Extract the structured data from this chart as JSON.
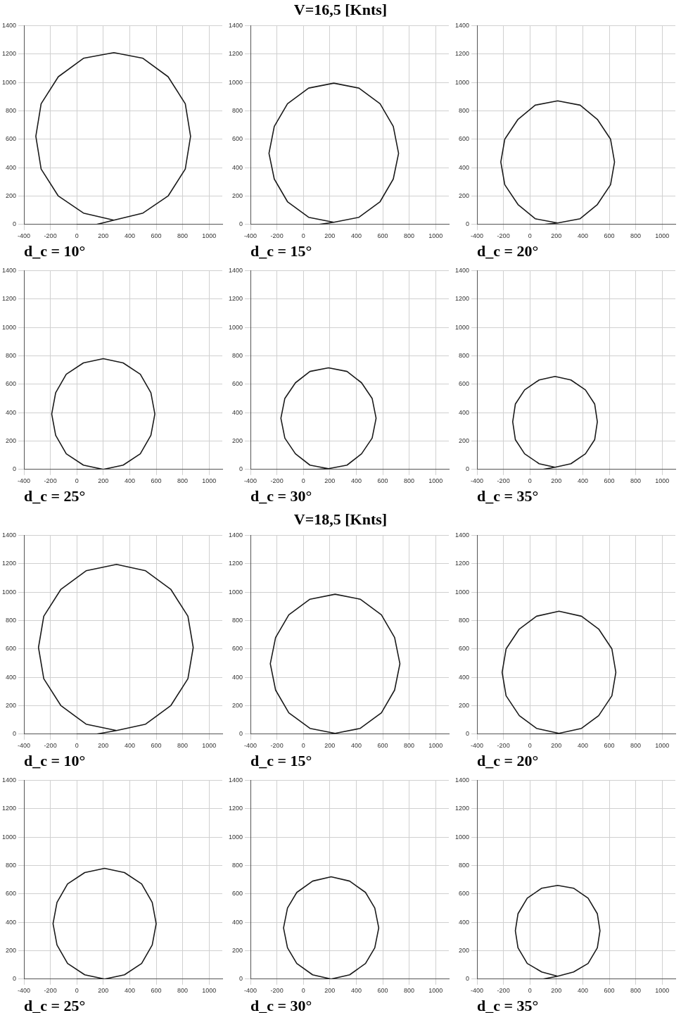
{
  "chart_data": [
    {
      "type": "line",
      "xlabel": "d_c = 10°",
      "color": "#1a1a1a",
      "x": [
        0,
        150,
        280,
        500,
        690,
        820,
        860,
        820,
        690,
        500,
        280,
        50,
        -140,
        -270,
        -310,
        -270,
        -140,
        50,
        280
      ],
      "values": [
        0,
        0,
        30,
        80,
        200,
        390,
        620,
        850,
        1040,
        1170,
        1210,
        1170,
        1040,
        850,
        620,
        390,
        200,
        80,
        30
      ],
      "xlim": [
        -400,
        1100
      ],
      "xticks": [
        -400,
        -200,
        0,
        200,
        400,
        600,
        800,
        1000
      ],
      "ylim": [
        0,
        1400
      ],
      "yticks": [
        0,
        200,
        400,
        600,
        800,
        1000,
        1200,
        1400
      ],
      "grid": true
    },
    {
      "type": "line",
      "title": "V=16,5 [Knts]",
      "xlabel": "d_c = 15°",
      "color": "#1a1a1a",
      "x": [
        0,
        120,
        230,
        420,
        580,
        680,
        720,
        680,
        580,
        420,
        230,
        40,
        -120,
        -220,
        -260,
        -220,
        -120,
        40,
        230
      ],
      "values": [
        0,
        0,
        15,
        50,
        160,
        320,
        500,
        690,
        850,
        960,
        995,
        960,
        850,
        690,
        500,
        320,
        160,
        50,
        15
      ],
      "xlim": [
        -400,
        1100
      ],
      "xticks": [
        -400,
        -200,
        0,
        200,
        400,
        600,
        800,
        1000
      ],
      "ylim": [
        0,
        1400
      ],
      "yticks": [
        0,
        200,
        400,
        600,
        800,
        1000,
        1200,
        1400
      ],
      "grid": true
    },
    {
      "type": "line",
      "xlabel": "d_c = 20°",
      "color": "#1a1a1a",
      "x": [
        0,
        110,
        210,
        380,
        510,
        610,
        640,
        610,
        510,
        380,
        210,
        40,
        -90,
        -190,
        -220,
        -190,
        -90,
        40,
        210
      ],
      "values": [
        0,
        0,
        10,
        40,
        140,
        280,
        440,
        600,
        740,
        840,
        870,
        840,
        740,
        600,
        440,
        280,
        140,
        40,
        10
      ],
      "xlim": [
        -400,
        1100
      ],
      "xticks": [
        -400,
        -200,
        0,
        200,
        400,
        600,
        800,
        1000
      ],
      "ylim": [
        0,
        1400
      ],
      "yticks": [
        0,
        200,
        400,
        600,
        800,
        1000,
        1200,
        1400
      ],
      "grid": true
    },
    {
      "type": "line",
      "xlabel": "d_c = 25°",
      "color": "#1a1a1a",
      "x": [
        0,
        100,
        200,
        350,
        480,
        560,
        590,
        560,
        480,
        350,
        200,
        50,
        -80,
        -160,
        -190,
        -160,
        -80,
        50,
        200
      ],
      "values": [
        0,
        0,
        0,
        30,
        110,
        240,
        390,
        540,
        670,
        750,
        780,
        750,
        670,
        540,
        390,
        240,
        110,
        30,
        0
      ],
      "xlim": [
        -400,
        1100
      ],
      "xticks": [
        -400,
        -200,
        0,
        200,
        400,
        600,
        800,
        1000
      ],
      "ylim": [
        0,
        1400
      ],
      "yticks": [
        0,
        200,
        400,
        600,
        800,
        1000,
        1200,
        1400
      ],
      "grid": true
    },
    {
      "type": "line",
      "xlabel": "d_c = 30°",
      "color": "#1a1a1a",
      "x": [
        0,
        100,
        190,
        330,
        440,
        520,
        550,
        520,
        440,
        330,
        190,
        50,
        -60,
        -140,
        -170,
        -140,
        -60,
        50,
        190
      ],
      "values": [
        0,
        0,
        5,
        30,
        110,
        220,
        360,
        500,
        610,
        690,
        715,
        690,
        610,
        500,
        360,
        220,
        110,
        30,
        5
      ],
      "xlim": [
        -400,
        1100
      ],
      "xticks": [
        -400,
        -200,
        0,
        200,
        400,
        600,
        800,
        1000
      ],
      "ylim": [
        0,
        1400
      ],
      "yticks": [
        0,
        200,
        400,
        600,
        800,
        1000,
        1200,
        1400
      ],
      "grid": true
    },
    {
      "type": "line",
      "xlabel": "d_c = 35°",
      "color": "#1a1a1a",
      "x": [
        0,
        100,
        190,
        310,
        420,
        490,
        510,
        490,
        420,
        310,
        190,
        70,
        -40,
        -110,
        -130,
        -110,
        -40,
        70,
        190
      ],
      "values": [
        0,
        0,
        15,
        40,
        110,
        210,
        335,
        460,
        560,
        630,
        655,
        630,
        560,
        460,
        335,
        210,
        110,
        40,
        15
      ],
      "xlim": [
        -400,
        1100
      ],
      "xticks": [
        -400,
        -200,
        0,
        200,
        400,
        600,
        800,
        1000
      ],
      "ylim": [
        0,
        1400
      ],
      "yticks": [
        0,
        200,
        400,
        600,
        800,
        1000,
        1200,
        1400
      ],
      "grid": true
    },
    {
      "type": "line",
      "xlabel": "d_c = 10°",
      "color": "#1a1a1a",
      "x": [
        0,
        150,
        300,
        520,
        710,
        840,
        880,
        840,
        710,
        520,
        300,
        70,
        -120,
        -250,
        -290,
        -250,
        -120,
        70,
        300
      ],
      "values": [
        0,
        0,
        25,
        70,
        200,
        390,
        610,
        830,
        1020,
        1150,
        1195,
        1150,
        1020,
        830,
        610,
        390,
        200,
        70,
        25
      ],
      "xlim": [
        -400,
        1100
      ],
      "xticks": [
        -400,
        -200,
        0,
        200,
        400,
        600,
        800,
        1000
      ],
      "ylim": [
        0,
        1400
      ],
      "yticks": [
        0,
        200,
        400,
        600,
        800,
        1000,
        1200,
        1400
      ],
      "grid": true
    },
    {
      "type": "line",
      "title": "V=18,5 [Knts]",
      "xlabel": "d_c = 15°",
      "color": "#1a1a1a",
      "x": [
        0,
        120,
        240,
        430,
        590,
        690,
        730,
        690,
        590,
        430,
        240,
        50,
        -110,
        -210,
        -250,
        -210,
        -110,
        50,
        240
      ],
      "values": [
        0,
        0,
        5,
        40,
        150,
        310,
        495,
        680,
        840,
        950,
        985,
        950,
        840,
        680,
        495,
        310,
        150,
        40,
        5
      ],
      "xlim": [
        -400,
        1100
      ],
      "xticks": [
        -400,
        -200,
        0,
        200,
        400,
        600,
        800,
        1000
      ],
      "ylim": [
        0,
        1400
      ],
      "yticks": [
        0,
        200,
        400,
        600,
        800,
        1000,
        1200,
        1400
      ],
      "grid": true
    },
    {
      "type": "line",
      "xlabel": "d_c = 20°",
      "color": "#1a1a1a",
      "x": [
        0,
        110,
        220,
        390,
        520,
        620,
        650,
        620,
        520,
        390,
        220,
        50,
        -80,
        -180,
        -210,
        -180,
        -80,
        50,
        220
      ],
      "values": [
        0,
        0,
        5,
        40,
        130,
        270,
        435,
        600,
        740,
        830,
        865,
        830,
        740,
        600,
        435,
        270,
        130,
        40,
        5
      ],
      "xlim": [
        -400,
        1100
      ],
      "xticks": [
        -400,
        -200,
        0,
        200,
        400,
        600,
        800,
        1000
      ],
      "ylim": [
        0,
        1400
      ],
      "yticks": [
        0,
        200,
        400,
        600,
        800,
        1000,
        1200,
        1400
      ],
      "grid": true
    },
    {
      "type": "line",
      "xlabel": "d_c = 25°",
      "color": "#1a1a1a",
      "x": [
        0,
        100,
        210,
        360,
        490,
        570,
        600,
        570,
        490,
        360,
        210,
        60,
        -70,
        -150,
        -180,
        -150,
        -70,
        60,
        210
      ],
      "values": [
        0,
        0,
        0,
        30,
        110,
        240,
        390,
        540,
        670,
        750,
        780,
        750,
        670,
        540,
        390,
        240,
        110,
        30,
        0
      ],
      "xlim": [
        -400,
        1100
      ],
      "xticks": [
        -400,
        -200,
        0,
        200,
        400,
        600,
        800,
        1000
      ],
      "ylim": [
        0,
        1400
      ],
      "yticks": [
        0,
        200,
        400,
        600,
        800,
        1000,
        1200,
        1400
      ],
      "grid": true
    },
    {
      "type": "line",
      "xlabel": "d_c = 30°",
      "color": "#1a1a1a",
      "x": [
        0,
        100,
        210,
        350,
        470,
        540,
        570,
        540,
        470,
        350,
        210,
        70,
        -50,
        -120,
        -150,
        -120,
        -50,
        70,
        210
      ],
      "values": [
        0,
        0,
        0,
        30,
        110,
        220,
        360,
        500,
        610,
        690,
        720,
        690,
        610,
        500,
        360,
        220,
        110,
        30,
        0
      ],
      "xlim": [
        -400,
        1100
      ],
      "xticks": [
        -400,
        -200,
        0,
        200,
        400,
        600,
        800,
        1000
      ],
      "ylim": [
        0,
        1400
      ],
      "yticks": [
        0,
        200,
        400,
        600,
        800,
        1000,
        1200,
        1400
      ],
      "grid": true
    },
    {
      "type": "line",
      "xlabel": "d_c = 35°",
      "color": "#1a1a1a",
      "x": [
        0,
        100,
        210,
        330,
        440,
        510,
        530,
        510,
        440,
        330,
        210,
        90,
        -20,
        -90,
        -110,
        -90,
        -20,
        90,
        210
      ],
      "values": [
        0,
        0,
        20,
        50,
        110,
        220,
        340,
        460,
        570,
        640,
        660,
        640,
        570,
        460,
        340,
        220,
        110,
        50,
        20
      ],
      "xlim": [
        -400,
        1100
      ],
      "xticks": [
        -400,
        -200,
        0,
        200,
        400,
        600,
        800,
        1000
      ],
      "ylim": [
        0,
        1400
      ],
      "yticks": [
        0,
        200,
        400,
        600,
        800,
        1000,
        1200,
        1400
      ],
      "grid": true
    }
  ]
}
